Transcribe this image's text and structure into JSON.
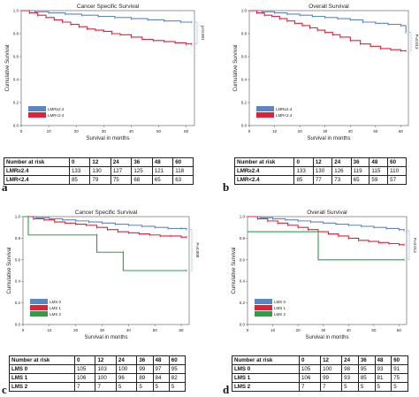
{
  "panels": [
    {
      "letter": "a",
      "chart_data": {
        "type": "line",
        "title": "Cancer Specific Survival",
        "xlabel": "Survival in months",
        "ylabel": "Cumulative Survival",
        "xlim": [
          0,
          63
        ],
        "ylim": [
          0,
          1.0
        ],
        "xticks": [
          0,
          10,
          20,
          30,
          40,
          50,
          60
        ],
        "yticks": [
          0.0,
          0.2,
          0.4,
          0.6,
          0.8,
          1.0
        ],
        "p_value": "p<0.001",
        "legend": "bottom-left",
        "series": [
          {
            "name": "LMR≥2.4",
            "color": "#5b86c5",
            "x": [
              0,
              5,
              10,
              16,
              22,
              28,
              34,
              40,
              46,
              52,
              58,
              62
            ],
            "y": [
              1.0,
              0.99,
              0.98,
              0.97,
              0.96,
              0.95,
              0.94,
              0.93,
              0.92,
              0.91,
              0.9,
              0.9
            ]
          },
          {
            "name": "LMR<2.4",
            "color": "#e0203c",
            "x": [
              0,
              3,
              6,
              9,
              12,
              15,
              18,
              21,
              24,
              27,
              30,
              33,
              36,
              40,
              44,
              48,
              52,
              56,
              60,
              62
            ],
            "y": [
              1.0,
              0.98,
              0.96,
              0.94,
              0.92,
              0.9,
              0.88,
              0.86,
              0.84,
              0.83,
              0.82,
              0.8,
              0.79,
              0.77,
              0.75,
              0.74,
              0.73,
              0.72,
              0.71,
              0.71
            ]
          }
        ]
      },
      "risk_table": {
        "header": [
          "Number at risk",
          "0",
          "12",
          "24",
          "36",
          "48",
          "60"
        ],
        "rows": [
          [
            "LMR≥2.4",
            "133",
            "130",
            "127",
            "125",
            "121",
            "118"
          ],
          [
            "LMR<2.4",
            "85",
            "79",
            "75",
            "68",
            "65",
            "63"
          ]
        ]
      }
    },
    {
      "letter": "b",
      "chart_data": {
        "type": "line",
        "title": "Overall Survival",
        "xlabel": "Survival in months",
        "ylabel": "Cumulative Survival",
        "xlim": [
          0,
          63
        ],
        "ylim": [
          0,
          1.0
        ],
        "xticks": [
          0,
          10,
          20,
          30,
          40,
          50,
          60
        ],
        "yticks": [
          0.0,
          0.2,
          0.4,
          0.6,
          0.8,
          1.0
        ],
        "p_value": "P=0.013",
        "legend": "bottom-left",
        "series": [
          {
            "name": "LMR≥2.4",
            "color": "#5b86c5",
            "x": [
              0,
              5,
              10,
              15,
              20,
              25,
              30,
              35,
              40,
              45,
              50,
              55,
              60,
              62
            ],
            "y": [
              1.0,
              0.99,
              0.98,
              0.97,
              0.96,
              0.95,
              0.94,
              0.93,
              0.92,
              0.9,
              0.89,
              0.88,
              0.87,
              0.81
            ]
          },
          {
            "name": "LMR<2.4",
            "color": "#e0203c",
            "x": [
              0,
              3,
              6,
              9,
              12,
              15,
              18,
              21,
              24,
              27,
              30,
              33,
              36,
              40,
              44,
              48,
              52,
              56,
              60,
              62
            ],
            "y": [
              1.0,
              0.98,
              0.96,
              0.95,
              0.93,
              0.91,
              0.89,
              0.87,
              0.85,
              0.83,
              0.81,
              0.79,
              0.77,
              0.74,
              0.71,
              0.69,
              0.67,
              0.66,
              0.65,
              0.65
            ]
          }
        ]
      },
      "risk_table": {
        "header": [
          "Number at risk",
          "0",
          "12",
          "24",
          "36",
          "48",
          "60"
        ],
        "rows": [
          [
            "LMR≥2.4",
            "133",
            "130",
            "126",
            "119",
            "115",
            "110"
          ],
          [
            "LMR<2.4",
            "85",
            "77",
            "73",
            "65",
            "59",
            "57"
          ]
        ]
      }
    },
    {
      "letter": "c",
      "chart_data": {
        "type": "line",
        "title": "Cancer Specific Survival",
        "xlabel": "Survival in months",
        "ylabel": "Cumulative Survival",
        "xlim": [
          0,
          63
        ],
        "ylim": [
          0,
          1.0
        ],
        "xticks": [
          0,
          10,
          20,
          30,
          40,
          50,
          60
        ],
        "yticks": [
          0.0,
          0.2,
          0.4,
          0.6,
          0.8,
          1.0
        ],
        "p_value": "P=0.008",
        "legend": "bottom-left",
        "series": [
          {
            "name": "LMS 0",
            "color": "#5b86c5",
            "x": [
              0,
              5,
              10,
              15,
              20,
              25,
              30,
              35,
              40,
              45,
              50,
              55,
              60,
              62
            ],
            "y": [
              1.0,
              0.99,
              0.98,
              0.97,
              0.96,
              0.95,
              0.94,
              0.93,
              0.92,
              0.91,
              0.9,
              0.89,
              0.89,
              0.88
            ]
          },
          {
            "name": "LMS 1",
            "color": "#e0203c",
            "x": [
              0,
              4,
              8,
              12,
              16,
              20,
              24,
              28,
              32,
              36,
              40,
              44,
              48,
              52,
              56,
              60,
              62
            ],
            "y": [
              1.0,
              0.98,
              0.97,
              0.95,
              0.94,
              0.93,
              0.92,
              0.9,
              0.88,
              0.86,
              0.85,
              0.84,
              0.83,
              0.82,
              0.82,
              0.81,
              0.81
            ]
          },
          {
            "name": "LMS 2",
            "color": "#2ca046",
            "x": [
              0,
              2,
              2,
              28,
              28,
              38,
              38,
              62
            ],
            "y": [
              1.0,
              1.0,
              0.83,
              0.83,
              0.67,
              0.67,
              0.5,
              0.5
            ]
          }
        ]
      },
      "risk_table": {
        "header": [
          "Number at risk",
          "0",
          "12",
          "24",
          "36",
          "48",
          "60"
        ],
        "rows": [
          [
            "LMS 0",
            "105",
            "103",
            "100",
            "99",
            "97",
            "95"
          ],
          [
            "LMS 1",
            "106",
            "100",
            "96",
            "89",
            "84",
            "82"
          ],
          [
            "LMS 2",
            "7",
            "7",
            "5",
            "5",
            "5",
            "5"
          ]
        ]
      }
    },
    {
      "letter": "d",
      "chart_data": {
        "type": "line",
        "title": "Overall Survival",
        "xlabel": "Survival in months",
        "ylabel": "Cumulative Survival",
        "xlim": [
          0,
          63
        ],
        "ylim": [
          0,
          1.0
        ],
        "xticks": [
          0,
          10,
          20,
          30,
          40,
          50,
          60
        ],
        "yticks": [
          0.0,
          0.2,
          0.4,
          0.6,
          0.8,
          1.0
        ],
        "p_value": "P=0.013",
        "legend": "bottom-left",
        "series": [
          {
            "name": "LMS 0",
            "color": "#5b86c5",
            "x": [
              0,
              5,
              10,
              15,
              20,
              25,
              30,
              35,
              40,
              45,
              50,
              55,
              60,
              62
            ],
            "y": [
              1.0,
              0.99,
              0.98,
              0.97,
              0.96,
              0.95,
              0.94,
              0.93,
              0.92,
              0.91,
              0.9,
              0.89,
              0.88,
              0.87
            ]
          },
          {
            "name": "LMS 1",
            "color": "#e0203c",
            "x": [
              0,
              4,
              8,
              12,
              16,
              20,
              24,
              28,
              32,
              36,
              40,
              44,
              48,
              52,
              56,
              60,
              62
            ],
            "y": [
              1.0,
              0.98,
              0.96,
              0.94,
              0.92,
              0.9,
              0.88,
              0.86,
              0.84,
              0.82,
              0.8,
              0.78,
              0.77,
              0.76,
              0.75,
              0.74,
              0.74
            ]
          },
          {
            "name": "LMS 2",
            "color": "#2ca046",
            "x": [
              0,
              28,
              28,
              62
            ],
            "y": [
              0.86,
              0.86,
              0.6,
              0.6
            ]
          }
        ]
      },
      "risk_table": {
        "header": [
          "Number at risk",
          "0",
          "12",
          "24",
          "36",
          "48",
          "60"
        ],
        "rows": [
          [
            "LMS 0",
            "105",
            "100",
            "98",
            "95",
            "93",
            "91"
          ],
          [
            "LMS 1",
            "106",
            "99",
            "93",
            "85",
            "81",
            "75"
          ],
          [
            "LMS 2",
            "7",
            "7",
            "5",
            "5",
            "5",
            "5"
          ]
        ]
      }
    }
  ]
}
